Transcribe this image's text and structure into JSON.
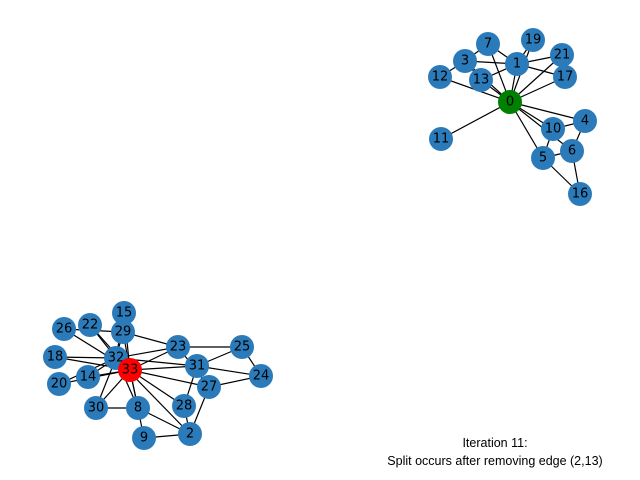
{
  "colors": {
    "node_default": "#2b7bba",
    "node_highlight_a": "#008000",
    "node_highlight_b": "#ff0000",
    "edge": "#000000",
    "background": "#ffffff"
  },
  "graph": {
    "highlight_nodes": {
      "0": "node_highlight_a",
      "33": "node_highlight_b"
    },
    "nodes": [
      "0",
      "1",
      "2",
      "3",
      "4",
      "5",
      "6",
      "7",
      "8",
      "9",
      "10",
      "11",
      "12",
      "13",
      "14",
      "15",
      "16",
      "17",
      "19",
      "20",
      "21",
      "22",
      "23",
      "24",
      "25",
      "26",
      "27",
      "28",
      "29",
      "30",
      "31",
      "32",
      "33",
      "18"
    ],
    "edges": [
      [
        "0",
        "1"
      ],
      [
        "0",
        "3"
      ],
      [
        "0",
        "4"
      ],
      [
        "0",
        "5"
      ],
      [
        "0",
        "6"
      ],
      [
        "0",
        "7"
      ],
      [
        "0",
        "10"
      ],
      [
        "0",
        "11"
      ],
      [
        "0",
        "12"
      ],
      [
        "0",
        "13"
      ],
      [
        "0",
        "17"
      ],
      [
        "0",
        "19"
      ],
      [
        "0",
        "21"
      ],
      [
        "1",
        "3"
      ],
      [
        "1",
        "7"
      ],
      [
        "1",
        "13"
      ],
      [
        "1",
        "17"
      ],
      [
        "1",
        "19"
      ],
      [
        "1",
        "21"
      ],
      [
        "3",
        "7"
      ],
      [
        "3",
        "12"
      ],
      [
        "3",
        "13"
      ],
      [
        "4",
        "6"
      ],
      [
        "4",
        "10"
      ],
      [
        "5",
        "6"
      ],
      [
        "5",
        "10"
      ],
      [
        "5",
        "16"
      ],
      [
        "6",
        "16"
      ],
      [
        "2",
        "8"
      ],
      [
        "2",
        "9"
      ],
      [
        "2",
        "27"
      ],
      [
        "2",
        "28"
      ],
      [
        "2",
        "32"
      ],
      [
        "8",
        "30"
      ],
      [
        "8",
        "32"
      ],
      [
        "8",
        "33"
      ],
      [
        "9",
        "33"
      ],
      [
        "14",
        "32"
      ],
      [
        "14",
        "33"
      ],
      [
        "15",
        "32"
      ],
      [
        "15",
        "33"
      ],
      [
        "18",
        "32"
      ],
      [
        "18",
        "33"
      ],
      [
        "20",
        "32"
      ],
      [
        "20",
        "33"
      ],
      [
        "22",
        "32"
      ],
      [
        "22",
        "33"
      ],
      [
        "23",
        "25"
      ],
      [
        "23",
        "27"
      ],
      [
        "23",
        "29"
      ],
      [
        "23",
        "32"
      ],
      [
        "23",
        "33"
      ],
      [
        "24",
        "25"
      ],
      [
        "24",
        "27"
      ],
      [
        "24",
        "31"
      ],
      [
        "25",
        "31"
      ],
      [
        "26",
        "29"
      ],
      [
        "26",
        "33"
      ],
      [
        "27",
        "33"
      ],
      [
        "28",
        "31"
      ],
      [
        "28",
        "33"
      ],
      [
        "29",
        "32"
      ],
      [
        "29",
        "33"
      ],
      [
        "30",
        "32"
      ],
      [
        "30",
        "33"
      ],
      [
        "31",
        "32"
      ],
      [
        "31",
        "33"
      ],
      [
        "32",
        "33"
      ]
    ]
  },
  "caption": {
    "line1": "Iteration 11:",
    "line2": "Split occurs after removing edge (2,13)"
  }
}
